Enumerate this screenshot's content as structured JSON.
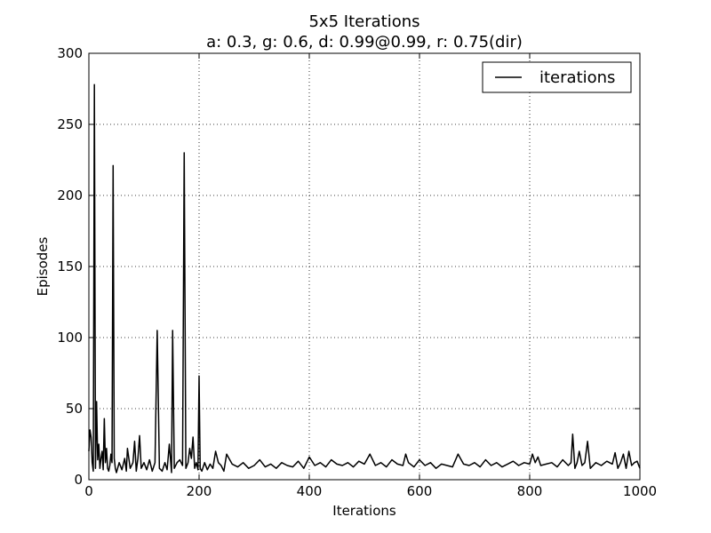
{
  "chart_data": {
    "type": "line",
    "title": "5x5 Iterations",
    "subtitle": "a: 0.3, g: 0.6, d: 0.99@0.99, r: 0.75(dir)",
    "xlabel": "Iterations",
    "ylabel": "Episodes",
    "xlim": [
      0,
      1000
    ],
    "ylim": [
      0,
      300
    ],
    "xticks": [
      0,
      200,
      400,
      600,
      800,
      1000
    ],
    "yticks": [
      0,
      50,
      100,
      150,
      200,
      250,
      300
    ],
    "grid": true,
    "legend_position": "top-right",
    "series": [
      {
        "name": "iterations",
        "color": "#000000",
        "x": [
          0,
          2,
          4,
          6,
          8,
          10,
          12,
          14,
          16,
          18,
          20,
          22,
          24,
          26,
          28,
          30,
          32,
          34,
          36,
          38,
          40,
          42,
          44,
          46,
          48,
          50,
          55,
          60,
          65,
          68,
          70,
          75,
          80,
          83,
          86,
          89,
          92,
          95,
          100,
          105,
          110,
          115,
          120,
          124,
          128,
          133,
          138,
          142,
          146,
          150,
          152,
          155,
          160,
          165,
          170,
          173,
          176,
          180,
          183,
          186,
          189,
          192,
          195,
          198,
          200,
          202,
          205,
          210,
          215,
          220,
          225,
          230,
          235,
          240,
          245,
          250,
          260,
          270,
          280,
          290,
          300,
          310,
          320,
          330,
          340,
          350,
          360,
          370,
          380,
          390,
          400,
          410,
          420,
          430,
          440,
          450,
          460,
          470,
          480,
          490,
          500,
          510,
          520,
          530,
          540,
          550,
          560,
          570,
          575,
          580,
          590,
          600,
          610,
          620,
          630,
          640,
          650,
          660,
          670,
          680,
          690,
          700,
          710,
          720,
          730,
          740,
          750,
          760,
          770,
          780,
          790,
          800,
          805,
          810,
          815,
          820,
          830,
          840,
          850,
          860,
          870,
          875,
          878,
          882,
          886,
          890,
          895,
          900,
          905,
          910,
          920,
          930,
          940,
          950,
          955,
          960,
          965,
          970,
          975,
          980,
          985,
          990,
          995,
          1000
        ],
        "y": [
          20,
          35,
          30,
          12,
          6,
          278,
          8,
          55,
          14,
          25,
          8,
          15,
          20,
          7,
          43,
          12,
          22,
          8,
          6,
          10,
          18,
          12,
          221,
          15,
          8,
          5,
          12,
          7,
          15,
          6,
          22,
          8,
          12,
          27,
          6,
          15,
          31,
          8,
          12,
          7,
          14,
          6,
          12,
          105,
          8,
          6,
          12,
          7,
          25,
          5,
          105,
          8,
          12,
          14,
          10,
          230,
          8,
          12,
          22,
          15,
          30,
          8,
          12,
          7,
          73,
          8,
          6,
          12,
          7,
          11,
          8,
          20,
          12,
          10,
          6,
          18,
          11,
          9,
          12,
          8,
          10,
          14,
          9,
          11,
          8,
          12,
          10,
          9,
          13,
          8,
          16,
          10,
          12,
          9,
          14,
          11,
          10,
          12,
          9,
          13,
          11,
          18,
          10,
          12,
          9,
          14,
          11,
          10,
          18,
          12,
          9,
          14,
          10,
          12,
          8,
          11,
          10,
          9,
          18,
          11,
          10,
          12,
          9,
          14,
          10,
          12,
          9,
          11,
          13,
          10,
          12,
          11,
          18,
          12,
          16,
          10,
          11,
          12,
          9,
          14,
          10,
          12,
          32,
          8,
          12,
          20,
          10,
          12,
          27,
          8,
          12,
          10,
          13,
          11,
          19,
          8,
          12,
          18,
          8,
          20,
          10,
          12,
          13,
          8
        ]
      }
    ]
  }
}
